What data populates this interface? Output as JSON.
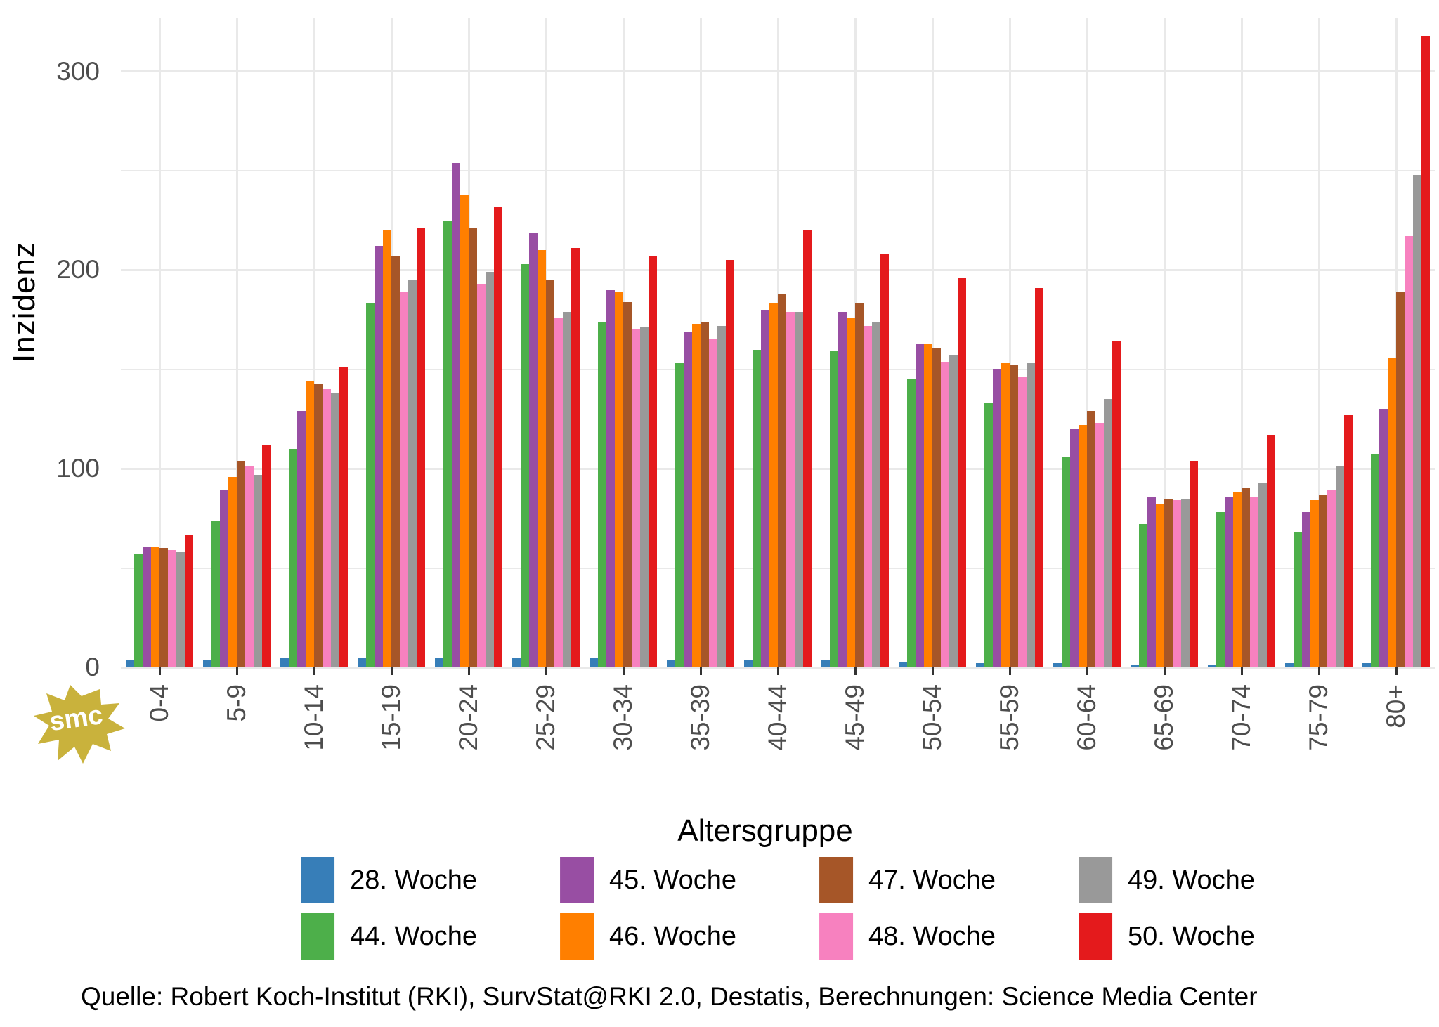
{
  "chart_data": {
    "type": "bar",
    "title": "",
    "xlabel": "Altersgruppe",
    "ylabel": "Inzidenz",
    "categories": [
      "0-4",
      "5-9",
      "10-14",
      "15-19",
      "20-24",
      "25-29",
      "30-34",
      "35-39",
      "40-44",
      "45-49",
      "50-54",
      "55-59",
      "60-64",
      "65-69",
      "70-74",
      "75-79",
      "80+"
    ],
    "series": [
      {
        "name": "28. Woche",
        "color": "#377EB8",
        "values": [
          4,
          4,
          5,
          5,
          5,
          5,
          5,
          4,
          4,
          4,
          3,
          2,
          2,
          1,
          1,
          2,
          2
        ]
      },
      {
        "name": "44. Woche",
        "color": "#4DAF4A",
        "values": [
          57,
          74,
          110,
          183,
          225,
          203,
          174,
          153,
          160,
          159,
          145,
          133,
          106,
          72,
          78,
          68,
          107
        ]
      },
      {
        "name": "45. Woche",
        "color": "#984EA3",
        "values": [
          61,
          89,
          129,
          212,
          254,
          219,
          190,
          169,
          180,
          179,
          163,
          150,
          120,
          86,
          86,
          78,
          130
        ]
      },
      {
        "name": "46. Woche",
        "color": "#FF7F00",
        "values": [
          61,
          96,
          144,
          220,
          238,
          210,
          189,
          173,
          183,
          176,
          163,
          153,
          122,
          82,
          88,
          84,
          156
        ]
      },
      {
        "name": "47. Woche",
        "color": "#A65628",
        "values": [
          60,
          104,
          143,
          207,
          221,
          195,
          184,
          174,
          188,
          183,
          161,
          152,
          129,
          85,
          90,
          87,
          189
        ]
      },
      {
        "name": "48. Woche",
        "color": "#F781BF",
        "values": [
          59,
          101,
          140,
          189,
          193,
          176,
          170,
          165,
          179,
          172,
          154,
          146,
          123,
          84,
          86,
          89,
          217
        ]
      },
      {
        "name": "49. Woche",
        "color": "#999999",
        "values": [
          58,
          97,
          138,
          195,
          199,
          179,
          171,
          172,
          179,
          174,
          157,
          153,
          135,
          85,
          93,
          101,
          248
        ]
      },
      {
        "name": "50. Woche",
        "color": "#E41A1C",
        "values": [
          67,
          112,
          151,
          221,
          232,
          211,
          207,
          205,
          220,
          208,
          196,
          191,
          164,
          104,
          117,
          127,
          318
        ]
      }
    ],
    "y_axis": {
      "labeled_ticks": [
        0,
        100,
        200,
        300
      ],
      "minor_gridlines": [
        50,
        150,
        250
      ],
      "ylim": [
        0,
        327
      ],
      "grid": true
    },
    "legend": {
      "position": "bottom",
      "rows": 2,
      "column_pairs": [
        [
          "28. Woche",
          "44. Woche"
        ],
        [
          "45. Woche",
          "46. Woche"
        ],
        [
          "47. Woche",
          "48. Woche"
        ],
        [
          "49. Woche",
          "50. Woche"
        ]
      ]
    }
  },
  "caption": {
    "text": "Quelle: Robert Koch-Institut (RKI), SurvStat@RKI 2.0, Destatis, Berechnungen: Science Media Center"
  },
  "watermark": {
    "text": "smc",
    "color": "#C9B23C"
  },
  "style": {
    "background": "#FFFFFF",
    "gridline_color": "#E9E9E9",
    "axis_text_color": "#4D4D4D",
    "tick_mark_color": "#333333",
    "text_color": "#000000"
  }
}
